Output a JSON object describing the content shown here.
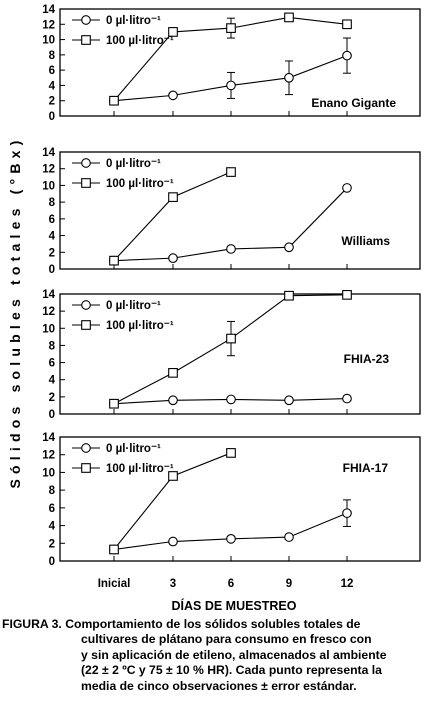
{
  "y_axis_label": "Sólidos solubles totales (°Bx)",
  "x_axis_label": "DÍAS DE MUESTREO",
  "x_tick_labels": [
    "Inicial",
    "3",
    "6",
    "9",
    "12"
  ],
  "caption": {
    "lead": "FIGURA 3. Comportamiento de los sólidos solubles totales de",
    "lines": [
      "cultivares de plátano para consumo en fresco con",
      "y sin aplicación de etileno, almacenados al ambiente",
      "(22 ± 2 ºC y 75 ± 10 % HR). Cada punto representa la",
      "media de cinco observaciones ± error estándar."
    ]
  },
  "chart_data": [
    {
      "type": "line",
      "panel_label": "Enano Gigante",
      "x": [
        "Inicial",
        "3",
        "6",
        "9",
        "12"
      ],
      "ylim": [
        0,
        14
      ],
      "y_ticks": [
        0,
        2,
        4,
        6,
        8,
        10,
        12,
        14
      ],
      "legend_position": "top-left",
      "series": [
        {
          "name": "0 µl·litro⁻¹",
          "marker": "circle",
          "values": [
            2.0,
            2.7,
            4.0,
            5.0,
            7.9
          ],
          "errors": [
            0.3,
            0.3,
            1.7,
            2.2,
            2.3
          ]
        },
        {
          "name": "100 µl·litro⁻¹",
          "marker": "square",
          "values": [
            2.0,
            11.0,
            11.5,
            12.9,
            12.0
          ],
          "errors": [
            0.3,
            0.3,
            1.3,
            0.3,
            0.3
          ]
        }
      ]
    },
    {
      "type": "line",
      "panel_label": "Williams",
      "x": [
        "Inicial",
        "3",
        "6",
        "9",
        "12"
      ],
      "ylim": [
        0,
        14
      ],
      "y_ticks": [
        0,
        2,
        4,
        6,
        8,
        10,
        12,
        14
      ],
      "legend_position": "top-left",
      "series": [
        {
          "name": "0 µl·litro⁻¹",
          "marker": "circle",
          "values": [
            1.0,
            1.3,
            2.4,
            2.6,
            9.7
          ],
          "errors": [
            0.2,
            0.2,
            0.2,
            0.2,
            0.5
          ]
        },
        {
          "name": "100 µl·litro⁻¹",
          "marker": "square",
          "values": [
            1.0,
            8.6,
            11.6,
            null,
            null
          ],
          "errors": [
            0.2,
            0.3,
            0.3,
            null,
            null
          ]
        }
      ]
    },
    {
      "type": "line",
      "panel_label": "FHIA-23",
      "x": [
        "Inicial",
        "3",
        "6",
        "9",
        "12"
      ],
      "ylim": [
        0,
        14
      ],
      "y_ticks": [
        0,
        2,
        4,
        6,
        8,
        10,
        12,
        14
      ],
      "legend_position": "top-left",
      "series": [
        {
          "name": "0 µl·litro⁻¹",
          "marker": "circle",
          "values": [
            1.2,
            1.6,
            1.7,
            1.6,
            1.8
          ],
          "errors": [
            0.2,
            0.2,
            0.2,
            0.2,
            0.2
          ]
        },
        {
          "name": "100 µl·litro⁻¹",
          "marker": "square",
          "values": [
            1.2,
            4.8,
            8.8,
            13.8,
            13.9
          ],
          "errors": [
            0.3,
            0.5,
            2.0,
            0.3,
            0.3
          ]
        }
      ]
    },
    {
      "type": "line",
      "panel_label": "FHIA-17",
      "x": [
        "Inicial",
        "3",
        "6",
        "9",
        "12"
      ],
      "ylim": [
        0,
        14
      ],
      "y_ticks": [
        0,
        2,
        4,
        6,
        8,
        10,
        12,
        14
      ],
      "legend_position": "top-left",
      "series": [
        {
          "name": "0 µl·litro⁻¹",
          "marker": "circle",
          "values": [
            1.3,
            2.2,
            2.5,
            2.7,
            5.4
          ],
          "errors": [
            0.2,
            0.2,
            0.2,
            0.2,
            1.5
          ]
        },
        {
          "name": "100 µl·litro⁻¹",
          "marker": "square",
          "values": [
            1.3,
            9.6,
            12.2,
            null,
            null
          ],
          "errors": [
            0.2,
            0.3,
            0.3,
            null,
            null
          ]
        }
      ]
    }
  ]
}
